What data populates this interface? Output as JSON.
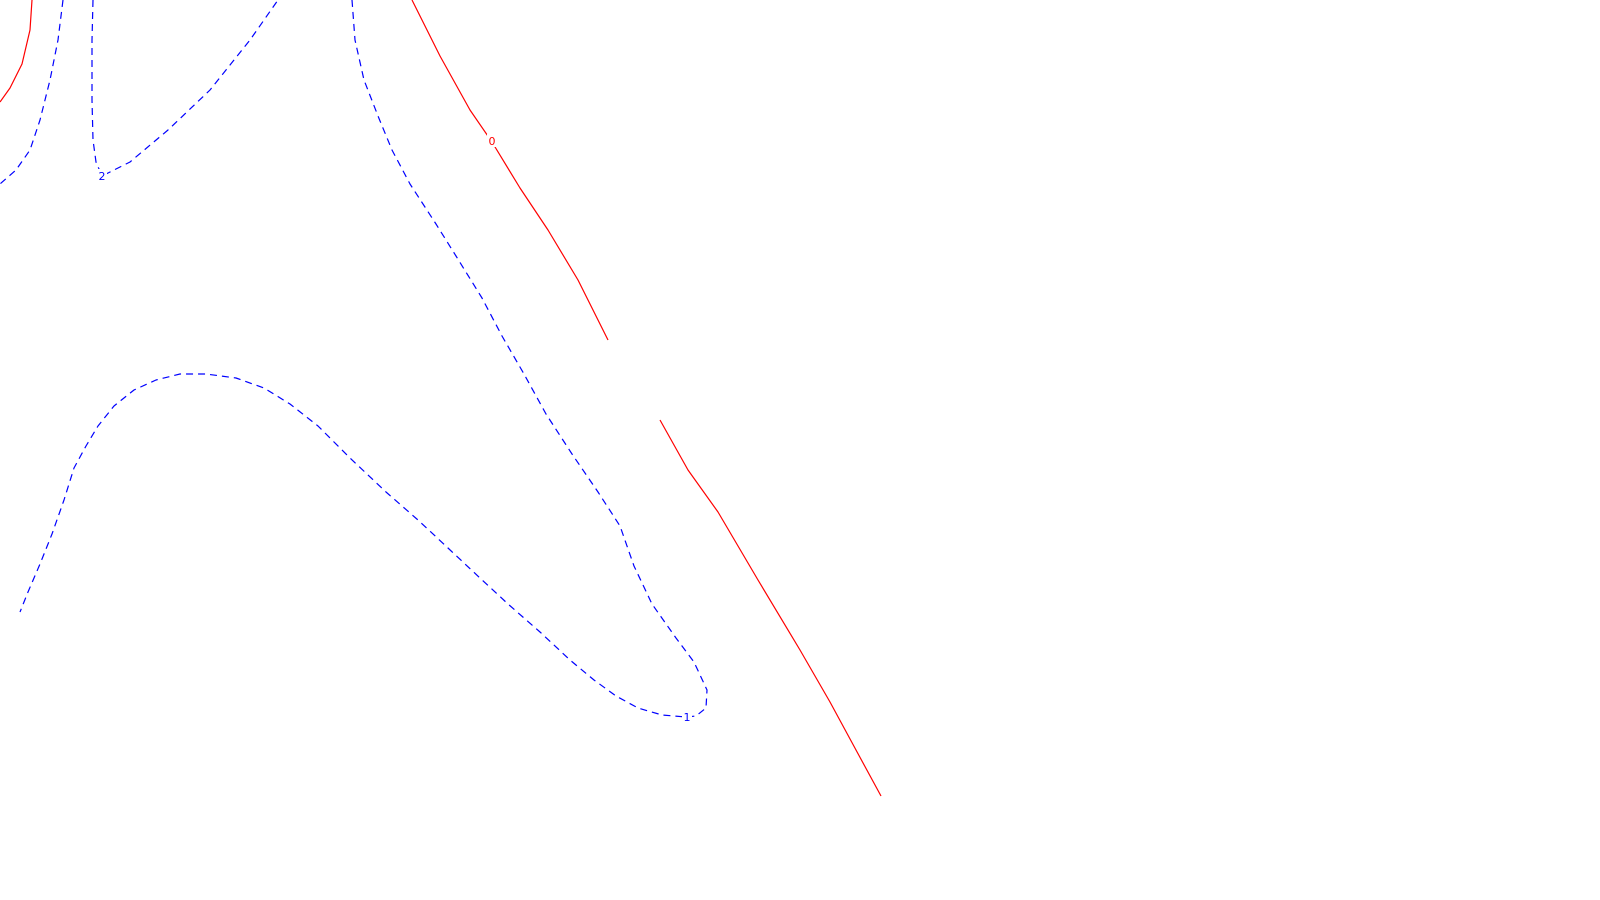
{
  "chart_data": {
    "type": "contour",
    "title": "",
    "xlabel": "",
    "ylabel": "",
    "grid": false,
    "legend": "none",
    "levels": [
      {
        "value": "0",
        "label": "0",
        "color": "#ff0000",
        "style": "solid",
        "segments": [
          [
            [
              32,
              0
            ],
            [
              30,
              30
            ],
            [
              22,
              64
            ],
            [
              10,
              88
            ],
            [
              0,
              102
            ]
          ],
          [
            [
              412,
              0
            ],
            [
              440,
              56
            ],
            [
              470,
              110
            ],
            [
              492,
              142
            ],
            [
              520,
              188
            ],
            [
              548,
              230
            ],
            [
              578,
              280
            ],
            [
              608,
              340
            ]
          ],
          [
            [
              660,
              420
            ],
            [
              688,
              470
            ],
            [
              718,
              512
            ],
            [
              758,
              580
            ],
            [
              800,
              650
            ],
            [
              830,
              702
            ],
            [
              856,
              750
            ],
            [
              881,
              796
            ]
          ]
        ],
        "label_at": [
          492,
          141
        ]
      },
      {
        "value": "2",
        "label": "2",
        "color": "#0000ff",
        "style": "dashed",
        "segments": [
          [
            [
              63,
              0
            ],
            [
              58,
              40
            ],
            [
              50,
              80
            ],
            [
              40,
              120
            ],
            [
              30,
              150
            ],
            [
              16,
              170
            ],
            [
              0,
              184
            ]
          ],
          [
            [
              93,
              0
            ],
            [
              92,
              40
            ],
            [
              92,
              100
            ],
            [
              93,
              140
            ],
            [
              96,
              162
            ],
            [
              102,
              176
            ],
            [
              130,
              162
            ],
            [
              168,
              130
            ],
            [
              210,
              90
            ],
            [
              250,
              40
            ],
            [
              278,
              0
            ]
          ]
        ],
        "label_at": [
          102,
          176
        ]
      },
      {
        "value": "1",
        "label": "1",
        "color": "#0000ff",
        "style": "dashed",
        "segments": [
          [
            [
              352,
              0
            ],
            [
              355,
              40
            ],
            [
              364,
              80
            ],
            [
              378,
              116
            ],
            [
              392,
              150
            ],
            [
              410,
              184
            ],
            [
              436,
              224
            ],
            [
              456,
              256
            ],
            [
              482,
              298
            ],
            [
              502,
              336
            ],
            [
              524,
              374
            ],
            [
              546,
              414
            ],
            [
              572,
              454
            ],
            [
              598,
              492
            ],
            [
              620,
              526
            ],
            [
              634,
              566
            ],
            [
              652,
              604
            ],
            [
              676,
              638
            ],
            [
              694,
              662
            ],
            [
              707,
              690
            ],
            [
              706,
              708
            ],
            [
              696,
              716
            ],
            [
              686,
              717
            ],
            [
              662,
              715
            ],
            [
              638,
              708
            ],
            [
              616,
              696
            ],
            [
              594,
              680
            ],
            [
              570,
              660
            ],
            [
              540,
              632
            ],
            [
              508,
              604
            ],
            [
              480,
              578
            ],
            [
              448,
              548
            ],
            [
              418,
              520
            ],
            [
              386,
              492
            ],
            [
              350,
              458
            ],
            [
              318,
              426
            ],
            [
              290,
              404
            ],
            [
              264,
              388
            ],
            [
              236,
              378
            ],
            [
              206,
              374
            ],
            [
              180,
              374
            ],
            [
              156,
              380
            ],
            [
              134,
              390
            ],
            [
              114,
              406
            ],
            [
              98,
              426
            ],
            [
              86,
              446
            ],
            [
              74,
              468
            ],
            [
              64,
              500
            ],
            [
              52,
              534
            ],
            [
              40,
              564
            ],
            [
              28,
              592
            ],
            [
              20,
              612
            ]
          ]
        ],
        "label_at": [
          687,
          717
        ]
      }
    ]
  }
}
